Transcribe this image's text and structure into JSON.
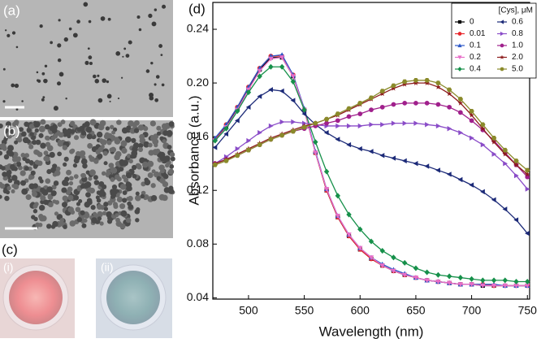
{
  "panels": {
    "a": "(a)",
    "b": "(b)",
    "c": "(c)",
    "c_i": "(i)",
    "c_ii": "(ii)",
    "d": "(d)"
  },
  "chart_data": {
    "type": "line",
    "xlabel": "Wavelength (nm)",
    "ylabel": "Absorbance (a.u.)",
    "legend_title": "[Cys], μM",
    "legend": "upper right",
    "xlim": [
      468,
      752
    ],
    "ylim": [
      0.039,
      0.26
    ],
    "xticks": [
      500,
      550,
      600,
      650,
      700,
      750
    ],
    "yticks": [
      0.04,
      0.08,
      0.12,
      0.16,
      {
        "value": 0.2,
        "label": "0.20"
      },
      0.24
    ],
    "x": [
      470,
      480,
      490,
      500,
      510,
      520,
      530,
      540,
      550,
      560,
      570,
      580,
      590,
      600,
      610,
      620,
      630,
      640,
      650,
      660,
      670,
      680,
      690,
      700,
      710,
      720,
      730,
      740,
      750
    ],
    "series": [
      {
        "name": "0",
        "color": "#000000",
        "marker": "square",
        "values": [
          0.158,
          0.168,
          0.181,
          0.196,
          0.21,
          0.219,
          0.219,
          0.205,
          0.18,
          0.148,
          0.12,
          0.1,
          0.086,
          0.076,
          0.069,
          0.064,
          0.06,
          0.057,
          0.055,
          0.053,
          0.052,
          0.051,
          0.05,
          0.05,
          0.049,
          0.049,
          0.049,
          0.049,
          0.049
        ]
      },
      {
        "name": "0.01",
        "color": "#e8262b",
        "marker": "circle",
        "values": [
          0.158,
          0.169,
          0.182,
          0.197,
          0.211,
          0.22,
          0.22,
          0.206,
          0.18,
          0.148,
          0.12,
          0.1,
          0.086,
          0.076,
          0.069,
          0.064,
          0.06,
          0.057,
          0.055,
          0.053,
          0.052,
          0.051,
          0.05,
          0.05,
          0.05,
          0.049,
          0.049,
          0.049,
          0.049
        ]
      },
      {
        "name": "0.1",
        "color": "#2d58c8",
        "marker": "triangle-up",
        "values": [
          0.159,
          0.169,
          0.182,
          0.197,
          0.211,
          0.22,
          0.221,
          0.206,
          0.181,
          0.149,
          0.121,
          0.101,
          0.087,
          0.077,
          0.07,
          0.065,
          0.061,
          0.058,
          0.055,
          0.053,
          0.052,
          0.051,
          0.05,
          0.05,
          0.05,
          0.05,
          0.049,
          0.049,
          0.049
        ]
      },
      {
        "name": "0.2",
        "color": "#e86ec8",
        "marker": "triangle-down",
        "values": [
          0.157,
          0.167,
          0.18,
          0.195,
          0.209,
          0.218,
          0.219,
          0.205,
          0.18,
          0.148,
          0.121,
          0.101,
          0.087,
          0.077,
          0.07,
          0.064,
          0.06,
          0.057,
          0.055,
          0.053,
          0.052,
          0.051,
          0.05,
          0.05,
          0.049,
          0.049,
          0.049,
          0.049,
          0.049
        ]
      },
      {
        "name": "0.4",
        "color": "#16904a",
        "marker": "diamond",
        "values": [
          0.157,
          0.166,
          0.179,
          0.193,
          0.205,
          0.212,
          0.212,
          0.201,
          0.18,
          0.156,
          0.134,
          0.116,
          0.102,
          0.091,
          0.082,
          0.075,
          0.07,
          0.066,
          0.062,
          0.059,
          0.057,
          0.056,
          0.055,
          0.054,
          0.053,
          0.053,
          0.053,
          0.052,
          0.052
        ]
      },
      {
        "name": "0.6",
        "color": "#1c2a78",
        "marker": "triangle-left",
        "values": [
          0.152,
          0.162,
          0.172,
          0.182,
          0.19,
          0.195,
          0.194,
          0.187,
          0.177,
          0.169,
          0.163,
          0.158,
          0.154,
          0.151,
          0.149,
          0.146,
          0.144,
          0.142,
          0.14,
          0.138,
          0.135,
          0.132,
          0.128,
          0.124,
          0.119,
          0.113,
          0.106,
          0.098,
          0.088
        ]
      },
      {
        "name": "0.8",
        "color": "#8a4cc8",
        "marker": "triangle-right",
        "values": [
          0.14,
          0.145,
          0.151,
          0.157,
          0.163,
          0.168,
          0.171,
          0.171,
          0.17,
          0.169,
          0.168,
          0.168,
          0.168,
          0.168,
          0.169,
          0.169,
          0.17,
          0.17,
          0.17,
          0.169,
          0.168,
          0.166,
          0.163,
          0.159,
          0.154,
          0.147,
          0.14,
          0.131,
          0.121
        ]
      },
      {
        "name": "1.0",
        "color": "#a0208c",
        "marker": "circle",
        "values": [
          0.14,
          0.143,
          0.146,
          0.15,
          0.154,
          0.158,
          0.161,
          0.164,
          0.166,
          0.168,
          0.17,
          0.172,
          0.175,
          0.177,
          0.18,
          0.182,
          0.184,
          0.185,
          0.185,
          0.185,
          0.184,
          0.182,
          0.178,
          0.172,
          0.165,
          0.157,
          0.148,
          0.139,
          0.13
        ]
      },
      {
        "name": "2.0",
        "color": "#8c1c1c",
        "marker": "star",
        "values": [
          0.14,
          0.143,
          0.147,
          0.151,
          0.155,
          0.159,
          0.162,
          0.165,
          0.168,
          0.17,
          0.173,
          0.176,
          0.18,
          0.184,
          0.188,
          0.192,
          0.196,
          0.199,
          0.2,
          0.2,
          0.197,
          0.192,
          0.185,
          0.176,
          0.166,
          0.156,
          0.147,
          0.139,
          0.132
        ]
      },
      {
        "name": "5.0",
        "color": "#8a8a2a",
        "marker": "hexagon",
        "values": [
          0.139,
          0.142,
          0.146,
          0.15,
          0.154,
          0.158,
          0.161,
          0.164,
          0.167,
          0.17,
          0.173,
          0.177,
          0.181,
          0.185,
          0.189,
          0.194,
          0.198,
          0.201,
          0.202,
          0.202,
          0.2,
          0.195,
          0.188,
          0.179,
          0.169,
          0.159,
          0.15,
          0.142,
          0.135
        ]
      }
    ]
  }
}
